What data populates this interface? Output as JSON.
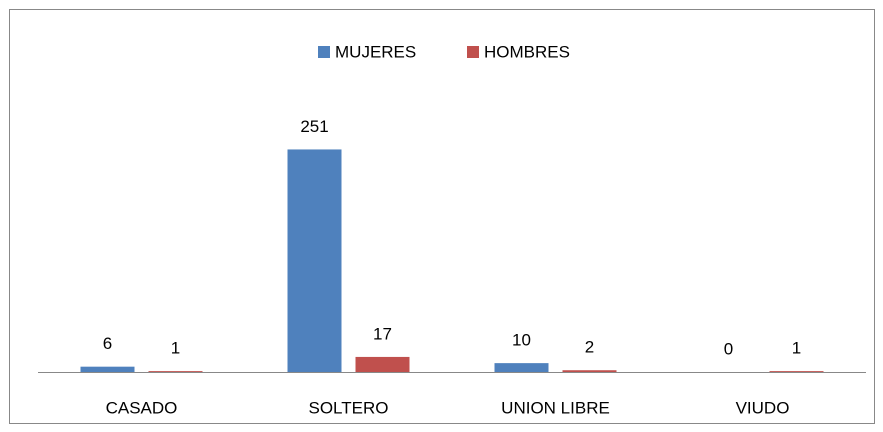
{
  "chart_data": {
    "type": "bar",
    "categories": [
      "CASADO",
      "SOLTERO",
      "UNION LIBRE",
      "VIUDO"
    ],
    "series": [
      {
        "name": "MUJERES",
        "color": "#4f81bd",
        "values": [
          6,
          251,
          10,
          0
        ]
      },
      {
        "name": "HOMBRES",
        "color": "#c0504d",
        "values": [
          1,
          17,
          2,
          1
        ]
      }
    ],
    "ylim": [
      0,
      300
    ],
    "legend": "top"
  }
}
